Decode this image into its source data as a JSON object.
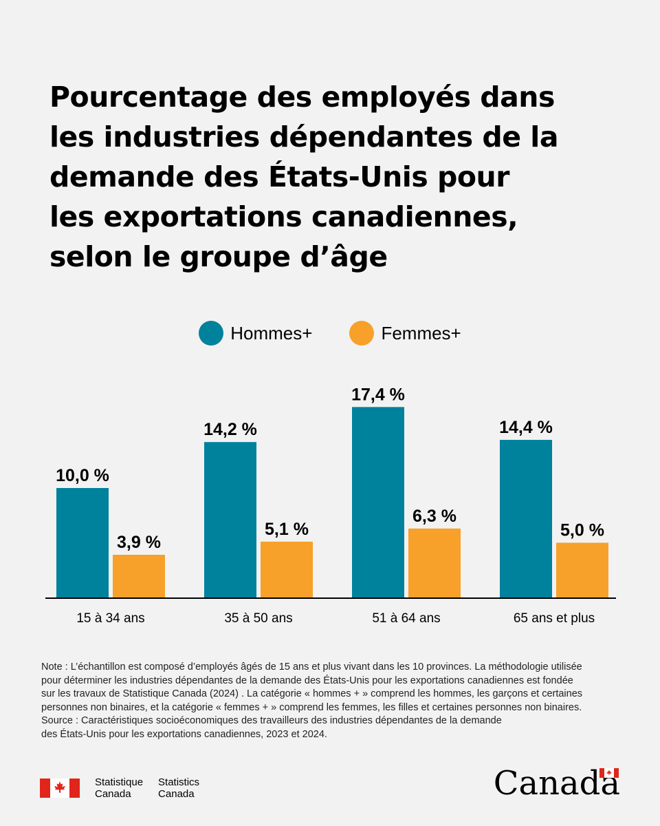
{
  "title_lines": [
    "Pourcentage des employés dans",
    "les industries dépendantes de la",
    "demande des États-Unis pour",
    "les exportations canadiennes,",
    "selon le groupe d’âge"
  ],
  "colors": {
    "men": "#00819c",
    "women": "#f7a02a",
    "background": "#f2f2f2",
    "maple": "#e1251b"
  },
  "chart_data": {
    "type": "bar",
    "title": "Pourcentage des employés dans les industries dépendantes de la demande des États-Unis pour les exportations canadiennes, selon le groupe d’âge",
    "categories": [
      "15 à 34 ans",
      "35 à 50 ans",
      "51 à 64 ans",
      "65 ans et plus"
    ],
    "series": [
      {
        "name": "Hommes+",
        "values": [
          10.0,
          14.2,
          17.4,
          14.4
        ],
        "labels": [
          "10,0 %",
          "14,2 %",
          "17,4 %",
          "14,4 %"
        ]
      },
      {
        "name": "Femmes+",
        "values": [
          3.9,
          5.1,
          6.3,
          5.0
        ],
        "labels": [
          "3,9 %",
          "5,1 %",
          "6,3 %",
          "5,0 %"
        ]
      }
    ],
    "ylim": [
      0,
      20
    ],
    "legend_position": "top-center",
    "grid": false
  },
  "note": {
    "lines": [
      "Note : L’échantillon est composé d’employés âgés de 15 ans et plus vivant dans les 10 provinces. La méthodologie utilisée",
      "pour déterminer les industries dépendantes de la demande des États-Unis pour les exportations canadiennes est fondée",
      "sur les travaux de Statistique Canada (2024) . La catégorie « hommes + » comprend les hommes, les garçons et certaines",
      "personnes non binaires, et la catégorie « femmes + » comprend les femmes, les filles et certaines personnes non binaires.",
      "Source : Caractéristiques socioéconomiques des travailleurs des industries dépendantes de la demande",
      "des États-Unis pour les exportations canadiennes, 2023 et 2024."
    ]
  },
  "footer": {
    "signature_fr": [
      "Statistique",
      "Canada"
    ],
    "signature_en": [
      "Statistics",
      "Canada"
    ],
    "wordmark": "Canada"
  }
}
